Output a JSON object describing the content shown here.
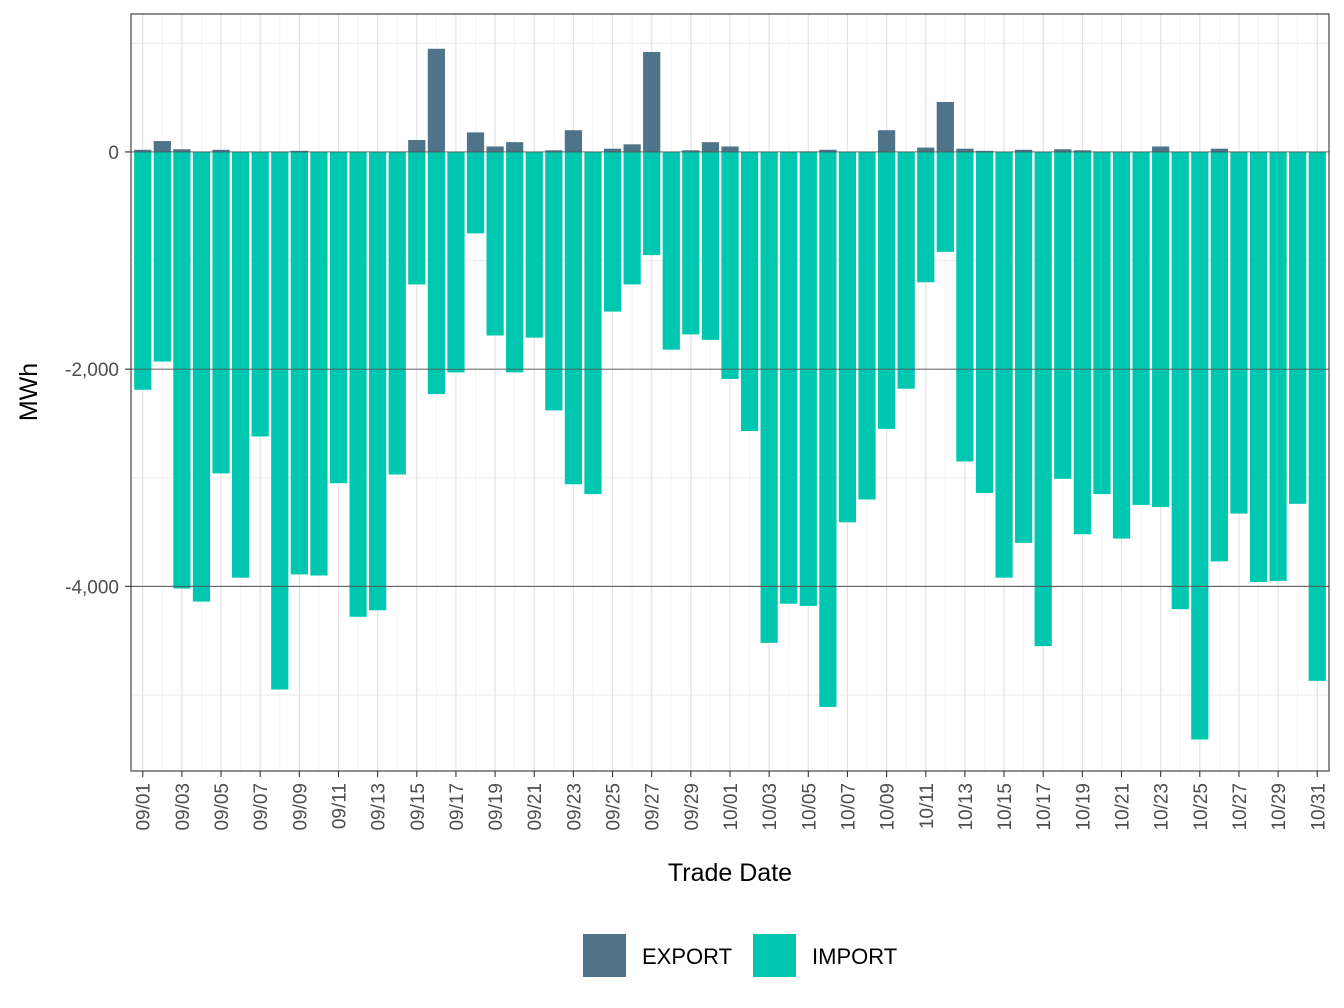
{
  "chart_data": {
    "type": "bar",
    "stacked": true,
    "xlabel": "Trade Date",
    "ylabel": "MWh",
    "ylim": [
      -5700,
      1270
    ],
    "yticks": [
      0,
      -2000,
      -4000
    ],
    "ytick_labels": [
      "0",
      "-2,000",
      "-4,000"
    ],
    "grid": true,
    "legend_position": "bottom",
    "categories": [
      "09/01",
      "09/02",
      "09/03",
      "09/04",
      "09/05",
      "09/06",
      "09/07",
      "09/08",
      "09/09",
      "09/10",
      "09/11",
      "09/12",
      "09/13",
      "09/14",
      "09/15",
      "09/16",
      "09/17",
      "09/18",
      "09/19",
      "09/20",
      "09/21",
      "09/22",
      "09/23",
      "09/24",
      "09/25",
      "09/26",
      "09/27",
      "09/28",
      "09/29",
      "09/30",
      "10/01",
      "10/02",
      "10/03",
      "10/04",
      "10/05",
      "10/06",
      "10/07",
      "10/08",
      "10/09",
      "10/10",
      "10/11",
      "10/12",
      "10/13",
      "10/14",
      "10/15",
      "10/16",
      "10/17",
      "10/18",
      "10/19",
      "10/20",
      "10/21",
      "10/22",
      "10/23",
      "10/24",
      "10/25",
      "10/26",
      "10/27",
      "10/28",
      "10/29",
      "10/30",
      "10/31"
    ],
    "xtick_labels": [
      "09/01",
      "09/03",
      "09/05",
      "09/07",
      "09/09",
      "09/11",
      "09/13",
      "09/15",
      "09/17",
      "09/19",
      "09/21",
      "09/23",
      "09/25",
      "09/27",
      "09/29",
      "10/01",
      "10/03",
      "10/05",
      "10/07",
      "10/09",
      "10/11",
      "10/13",
      "10/15",
      "10/17",
      "10/19",
      "10/21",
      "10/23",
      "10/25",
      "10/27",
      "10/29",
      "10/31"
    ],
    "series": [
      {
        "name": "EXPORT",
        "color": "#4f7489",
        "values": [
          20,
          100,
          25,
          0,
          20,
          0,
          0,
          0,
          10,
          0,
          0,
          0,
          0,
          0,
          110,
          950,
          0,
          180,
          50,
          90,
          0,
          15,
          200,
          0,
          30,
          70,
          920,
          0,
          15,
          90,
          50,
          0,
          0,
          0,
          5,
          20,
          0,
          0,
          200,
          0,
          40,
          460,
          30,
          10,
          0,
          20,
          0,
          25,
          15,
          0,
          0,
          0,
          50,
          0,
          0,
          30,
          0,
          0,
          0,
          0,
          0
        ]
      },
      {
        "name": "IMPORT",
        "color": "#00c8b0",
        "values": [
          -2190,
          -1930,
          -4020,
          -4140,
          -2960,
          -3920,
          -2620,
          -4950,
          -3890,
          -3900,
          -3050,
          -4280,
          -4220,
          -2970,
          -1220,
          -2230,
          -2030,
          -750,
          -1690,
          -2030,
          -1710,
          -2380,
          -3060,
          -3150,
          -1470,
          -1220,
          -950,
          -1820,
          -1680,
          -1730,
          -2090,
          -2570,
          -4520,
          -4160,
          -4180,
          -5110,
          -3410,
          -3200,
          -2550,
          -2180,
          -1200,
          -920,
          -2850,
          -3140,
          -3920,
          -3600,
          -4550,
          -3010,
          -3520,
          -3150,
          -3560,
          -3250,
          -3270,
          -4210,
          -5410,
          -3770,
          -3330,
          -3960,
          -3950,
          -3240,
          -4870
        ]
      }
    ]
  }
}
